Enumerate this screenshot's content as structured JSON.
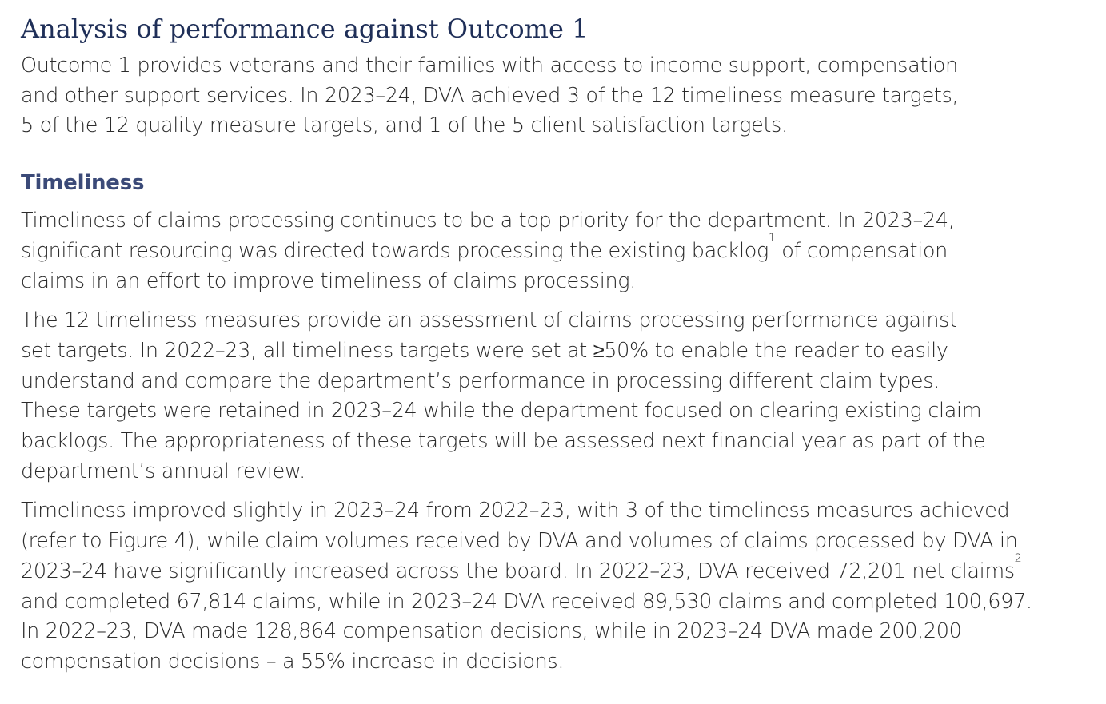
{
  "heading": "Analysis of performance against Outcome 1",
  "intro": [
    "Outcome 1 provides veterans and their families with access to income support, compensation",
    "and other support services. In 2023–24, DVA achieved 3 of the 12 timeliness measure targets,",
    "5 of the 12 quality measure targets, and 1 of the 5 client satisfaction targets."
  ],
  "subheading": "Timeliness",
  "para1": {
    "line1": "Timeliness of claims processing continues to be a top priority for the department. In 2023–24,",
    "line2_before": "significant resourcing was directed towards processing the existing backlog",
    "line2_sup": "1",
    "line2_after": " of compensation",
    "line3": "claims in an effort to improve timeliness of claims processing."
  },
  "para2": [
    "The 12 timeliness measures provide an assessment of claims processing performance against",
    "set targets. In 2022–23, all timeliness targets were set at ≥50% to enable the reader to easily",
    "understand and compare the department’s performance in processing different claim types.",
    "These targets were retained in 2023–24 while the department focused on clearing existing claim",
    "backlogs. The appropriateness of these targets will be assessed next financial year as part of the",
    "department’s annual review."
  ],
  "para3": {
    "line1": "Timeliness improved slightly in 2023–24 from 2022–23, with 3 of the timeliness measures achieved",
    "line2": "(refer to Figure 4), while claim volumes received by DVA and volumes of claims processed by DVA in",
    "line3_before": "2023–24 have significantly increased across the board. In 2022–23, DVA received 72,201 net claims",
    "line3_sup": "2",
    "line4": "and completed 67,814 claims, while in 2023–24 DVA received 89,530 claims and completed 100,697.",
    "line5": "In 2022–23, DVA made 128,864 compensation decisions, while in 2023–24 DVA made 200,200",
    "line6": "compensation decisions – a 55% increase in decisions."
  }
}
